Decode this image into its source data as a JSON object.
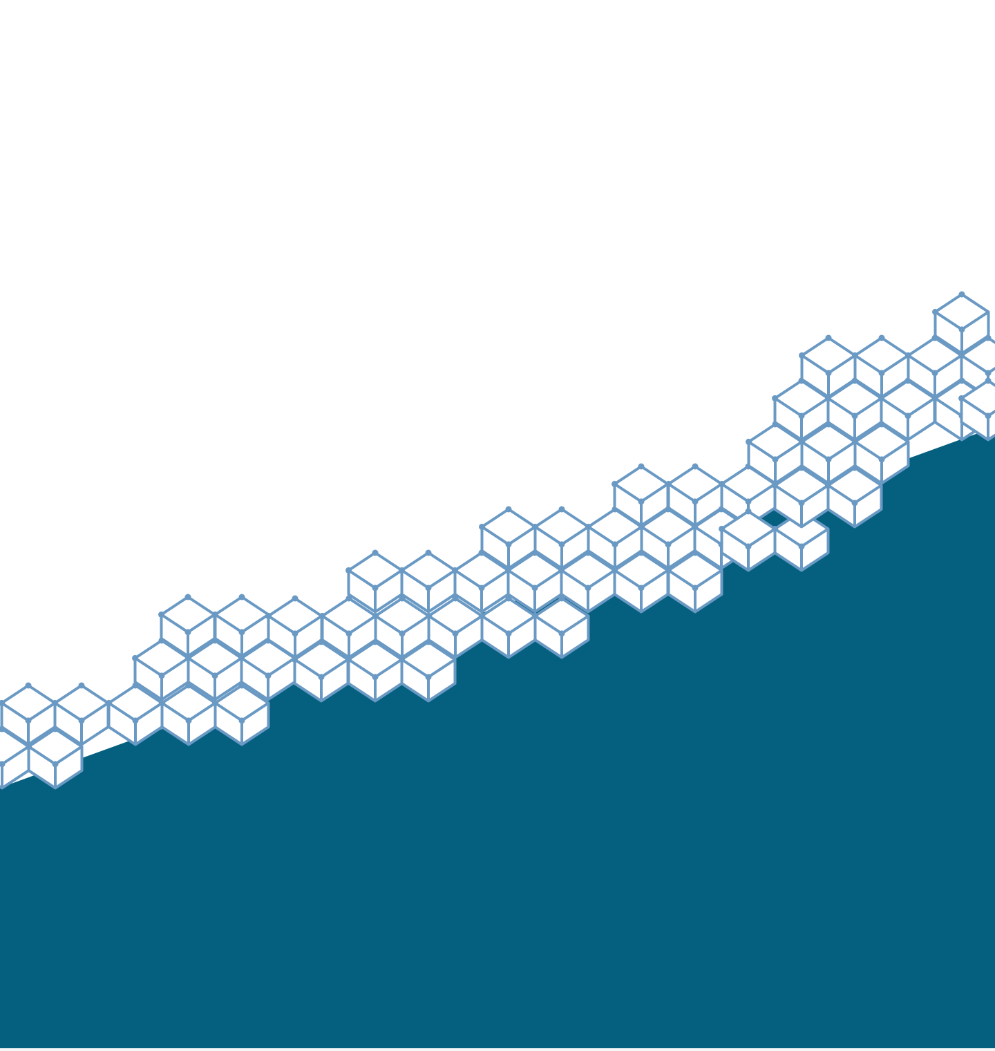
{
  "colors": {
    "background": "#ffffff",
    "fill": "#05607f",
    "cube_stroke": "#6a9ac4",
    "cube_face": "#ffffff",
    "bottom_strip": "#f4f6f7"
  },
  "graphic": {
    "pattern": "isometric-cube-outline",
    "shape": "diagonal-rising-band"
  }
}
